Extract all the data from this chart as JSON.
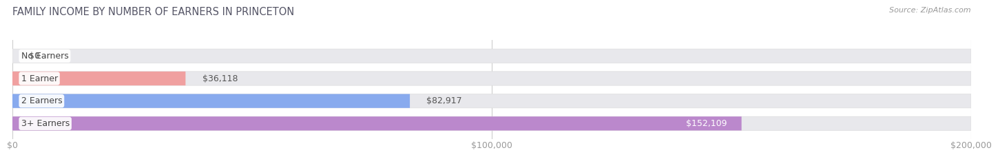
{
  "title": "FAMILY INCOME BY NUMBER OF EARNERS IN PRINCETON",
  "source": "Source: ZipAtlas.com",
  "categories": [
    "No Earners",
    "1 Earner",
    "2 Earners",
    "3+ Earners"
  ],
  "values": [
    0,
    36118,
    82917,
    152109
  ],
  "bar_colors": [
    "#f5c98a",
    "#f0a0a0",
    "#88aaee",
    "#bb88cc"
  ],
  "bar_bg_color": "#e8e8ec",
  "value_labels": [
    "$0",
    "$36,118",
    "$82,917",
    "$152,109"
  ],
  "value_label_inside": [
    false,
    false,
    false,
    true
  ],
  "xlim": [
    0,
    200000
  ],
  "xticks": [
    0,
    100000,
    200000
  ],
  "xticklabels": [
    "$0",
    "$100,000",
    "$200,000"
  ],
  "background_color": "#ffffff",
  "title_color": "#555566",
  "source_color": "#999999",
  "bar_height": 0.62,
  "title_fontsize": 10.5,
  "axis_fontsize": 9,
  "label_fontsize": 9,
  "value_fontsize": 9
}
